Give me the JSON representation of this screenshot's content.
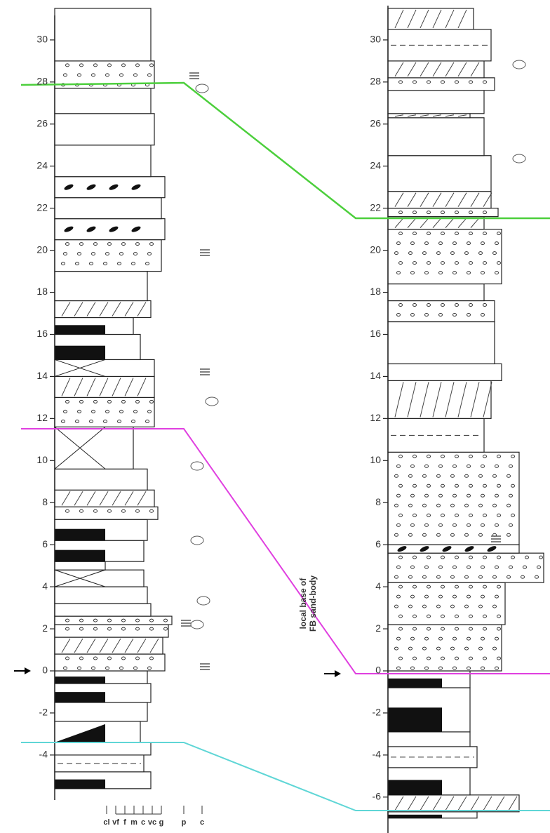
{
  "left_log": {
    "ticks": [
      -4,
      -2,
      0,
      2,
      4,
      6,
      8,
      10,
      12,
      14,
      16,
      18,
      20,
      22,
      24,
      26,
      28,
      30
    ]
  },
  "right_log": {
    "ticks": [
      -6,
      -4,
      -2,
      0,
      2,
      4,
      6,
      8,
      10,
      12,
      14,
      16,
      18,
      20,
      22,
      24,
      26,
      28,
      30
    ]
  },
  "annotation": {
    "lines": [
      "local base of",
      "FB sand-body"
    ]
  },
  "grain_size_scale": {
    "labels": [
      "cl",
      "vf",
      "f",
      "m",
      "c",
      "vc",
      "g",
      "p",
      "c"
    ]
  }
}
